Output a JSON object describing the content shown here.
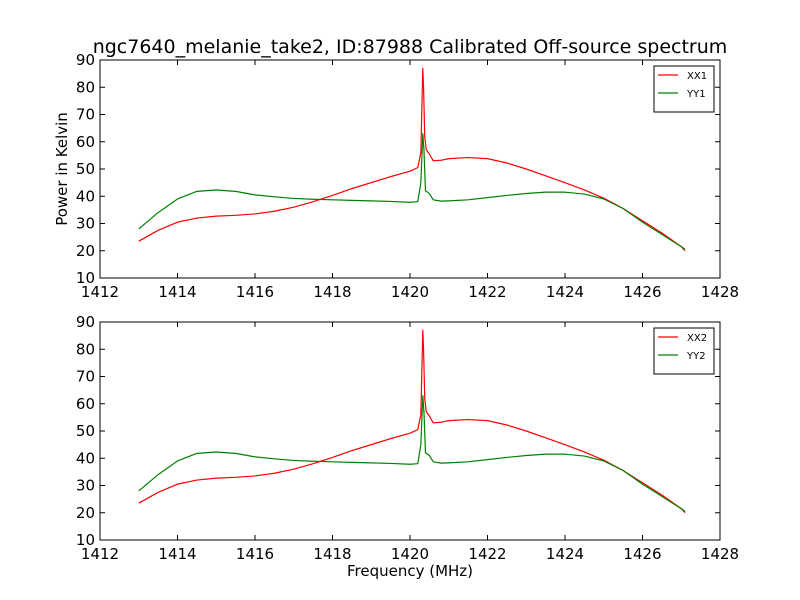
{
  "title": "ngc7640_melanie_take2, ID:87988 Calibrated Off-source spectrum",
  "ylabel": "Power in Kelvin",
  "xlabel": "Frequency (MHz)",
  "colors": {
    "xx": "#ff0000",
    "yy": "#008000"
  },
  "chart_data": [
    {
      "type": "line",
      "xlim": [
        1412,
        1428
      ],
      "ylim": [
        10,
        90
      ],
      "xticks": [
        1412,
        1414,
        1416,
        1418,
        1420,
        1422,
        1424,
        1426,
        1428
      ],
      "yticks": [
        10,
        20,
        30,
        40,
        50,
        60,
        70,
        80,
        90
      ],
      "legend": "top-right",
      "grid": false,
      "series": [
        {
          "name": "XX1",
          "color": "#ff0000",
          "x": [
            1413.0,
            1413.5,
            1414.0,
            1414.5,
            1415.0,
            1415.5,
            1416.0,
            1416.5,
            1417.0,
            1417.5,
            1418.0,
            1418.5,
            1419.0,
            1419.5,
            1420.0,
            1420.2,
            1420.28,
            1420.33,
            1420.35,
            1420.38,
            1420.42,
            1420.5,
            1420.6,
            1420.8,
            1421.0,
            1421.5,
            1422.0,
            1422.5,
            1423.0,
            1423.5,
            1424.0,
            1424.5,
            1425.0,
            1425.5,
            1426.0,
            1426.5,
            1427.0,
            1427.1
          ],
          "y": [
            23.5,
            27.5,
            30.5,
            32.0,
            32.7,
            33.0,
            33.5,
            34.5,
            36.0,
            38.0,
            40.3,
            42.8,
            45.0,
            47.2,
            49.2,
            50.5,
            56.0,
            87.0,
            80.0,
            62.0,
            57.0,
            55.5,
            53.0,
            53.2,
            53.8,
            54.2,
            53.8,
            52.2,
            50.0,
            47.5,
            45.0,
            42.3,
            39.3,
            35.5,
            31.0,
            26.5,
            21.5,
            20.0
          ]
        },
        {
          "name": "YY1",
          "color": "#008000",
          "x": [
            1413.0,
            1413.5,
            1414.0,
            1414.5,
            1415.0,
            1415.5,
            1416.0,
            1416.5,
            1417.0,
            1417.5,
            1418.0,
            1418.5,
            1419.0,
            1419.5,
            1420.0,
            1420.2,
            1420.28,
            1420.33,
            1420.36,
            1420.4,
            1420.5,
            1420.6,
            1420.8,
            1421.0,
            1421.5,
            1422.0,
            1422.5,
            1423.0,
            1423.5,
            1424.0,
            1424.5,
            1425.0,
            1425.5,
            1426.0,
            1426.5,
            1427.0,
            1427.1
          ],
          "y": [
            28.0,
            34.0,
            39.0,
            41.8,
            42.3,
            41.8,
            40.5,
            39.8,
            39.2,
            38.9,
            38.7,
            38.5,
            38.3,
            38.1,
            37.8,
            38.0,
            45.0,
            63.0,
            57.0,
            42.0,
            41.0,
            38.7,
            38.2,
            38.3,
            38.7,
            39.5,
            40.3,
            41.0,
            41.5,
            41.5,
            40.8,
            39.0,
            35.5,
            30.5,
            26.0,
            21.5,
            20.5
          ]
        }
      ]
    },
    {
      "type": "line",
      "xlim": [
        1412,
        1428
      ],
      "ylim": [
        10,
        90
      ],
      "xticks": [
        1412,
        1414,
        1416,
        1418,
        1420,
        1422,
        1424,
        1426,
        1428
      ],
      "yticks": [
        10,
        20,
        30,
        40,
        50,
        60,
        70,
        80,
        90
      ],
      "legend": "top-right",
      "grid": false,
      "series": [
        {
          "name": "XX2",
          "color": "#ff0000",
          "x": [
            1413.0,
            1413.5,
            1414.0,
            1414.5,
            1415.0,
            1415.5,
            1416.0,
            1416.5,
            1417.0,
            1417.5,
            1418.0,
            1418.5,
            1419.0,
            1419.5,
            1420.0,
            1420.2,
            1420.28,
            1420.33,
            1420.35,
            1420.38,
            1420.42,
            1420.5,
            1420.6,
            1420.8,
            1421.0,
            1421.5,
            1422.0,
            1422.5,
            1423.0,
            1423.5,
            1424.0,
            1424.5,
            1425.0,
            1425.5,
            1426.0,
            1426.5,
            1427.0,
            1427.1
          ],
          "y": [
            23.5,
            27.5,
            30.5,
            32.0,
            32.7,
            33.0,
            33.5,
            34.5,
            36.0,
            38.0,
            40.3,
            42.8,
            45.0,
            47.2,
            49.2,
            50.5,
            56.0,
            87.0,
            80.0,
            62.0,
            57.0,
            55.5,
            53.0,
            53.2,
            53.8,
            54.2,
            53.8,
            52.2,
            50.0,
            47.5,
            45.0,
            42.3,
            39.3,
            35.5,
            31.0,
            26.5,
            21.5,
            20.0
          ]
        },
        {
          "name": "YY2",
          "color": "#008000",
          "x": [
            1413.0,
            1413.5,
            1414.0,
            1414.5,
            1415.0,
            1415.5,
            1416.0,
            1416.5,
            1417.0,
            1417.5,
            1418.0,
            1418.5,
            1419.0,
            1419.5,
            1420.0,
            1420.2,
            1420.28,
            1420.33,
            1420.36,
            1420.4,
            1420.5,
            1420.6,
            1420.8,
            1421.0,
            1421.5,
            1422.0,
            1422.5,
            1423.0,
            1423.5,
            1424.0,
            1424.5,
            1425.0,
            1425.5,
            1426.0,
            1426.5,
            1427.0,
            1427.1
          ],
          "y": [
            28.0,
            34.0,
            39.0,
            41.8,
            42.3,
            41.8,
            40.5,
            39.8,
            39.2,
            38.9,
            38.7,
            38.5,
            38.3,
            38.1,
            37.8,
            38.0,
            45.0,
            63.0,
            57.0,
            42.0,
            41.0,
            38.7,
            38.2,
            38.3,
            38.7,
            39.5,
            40.3,
            41.0,
            41.5,
            41.5,
            40.8,
            39.0,
            35.5,
            30.5,
            26.0,
            21.5,
            20.5
          ]
        }
      ]
    }
  ]
}
